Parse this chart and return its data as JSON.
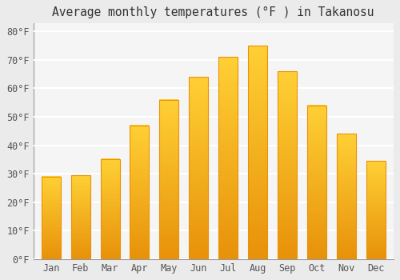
{
  "title": "Average monthly temperatures (°F ) in Takanosu",
  "months": [
    "Jan",
    "Feb",
    "Mar",
    "Apr",
    "May",
    "Jun",
    "Jul",
    "Aug",
    "Sep",
    "Oct",
    "Nov",
    "Dec"
  ],
  "values": [
    29.0,
    29.5,
    35.2,
    47.0,
    56.0,
    64.0,
    71.0,
    75.0,
    66.0,
    54.0,
    44.0,
    34.5
  ],
  "bar_color_bottom": "#E8920A",
  "bar_color_mid": "#F5A623",
  "bar_color_top": "#FFD035",
  "background_color": "#EBEBEB",
  "plot_bg_color": "#F5F5F5",
  "grid_color": "#FFFFFF",
  "yticks": [
    0,
    10,
    20,
    30,
    40,
    50,
    60,
    70,
    80
  ],
  "ylim": [
    0,
    83
  ],
  "title_fontsize": 10.5,
  "tick_fontsize": 8.5,
  "font_family": "monospace"
}
